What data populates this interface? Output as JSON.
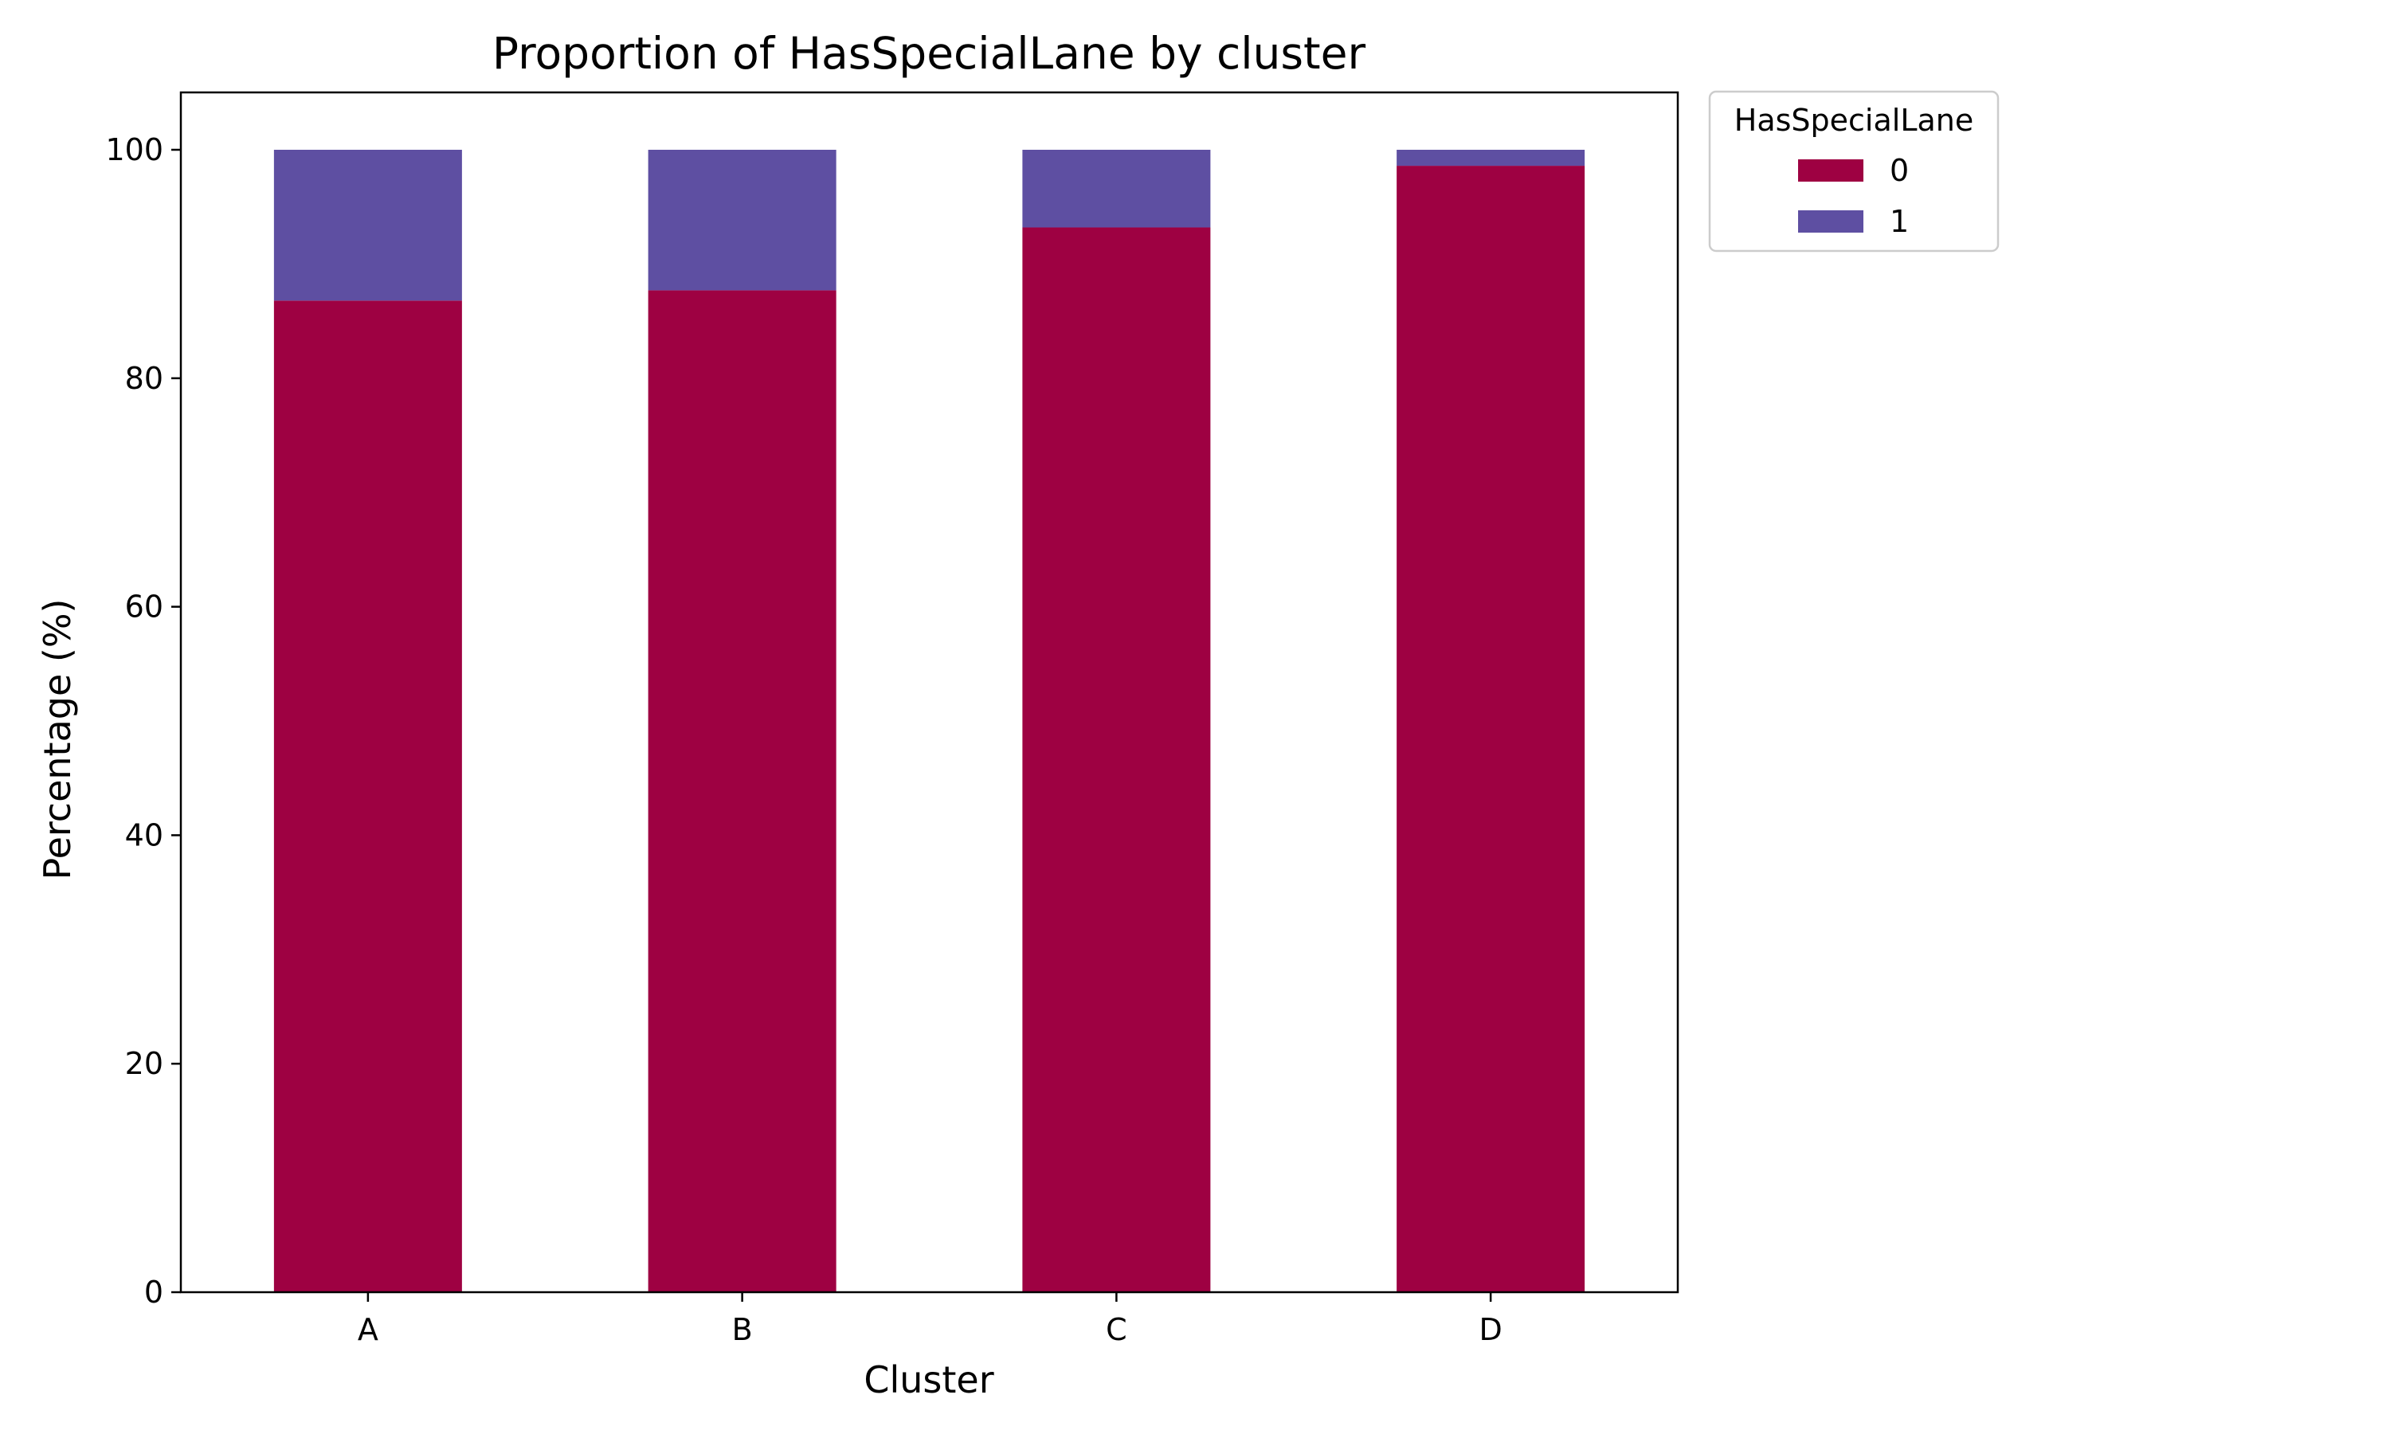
{
  "chart_data": {
    "type": "bar",
    "stacked": true,
    "title": "Proportion of HasSpecialLane by cluster",
    "xlabel": "Cluster",
    "ylabel": "Percentage (%)",
    "categories": [
      "A",
      "B",
      "C",
      "D"
    ],
    "ylim": [
      0,
      105
    ],
    "yticks": [
      0,
      20,
      40,
      60,
      80,
      100
    ],
    "grid": false,
    "legend": {
      "title": "HasSpecialLane",
      "placement": "outside-top-right"
    },
    "series": [
      {
        "name": "0",
        "color": "#9e0142",
        "values": [
          86.8,
          87.7,
          93.2,
          98.6
        ]
      },
      {
        "name": "1",
        "color": "#5e4fa2",
        "values": [
          13.2,
          12.3,
          6.8,
          1.4
        ]
      }
    ]
  }
}
